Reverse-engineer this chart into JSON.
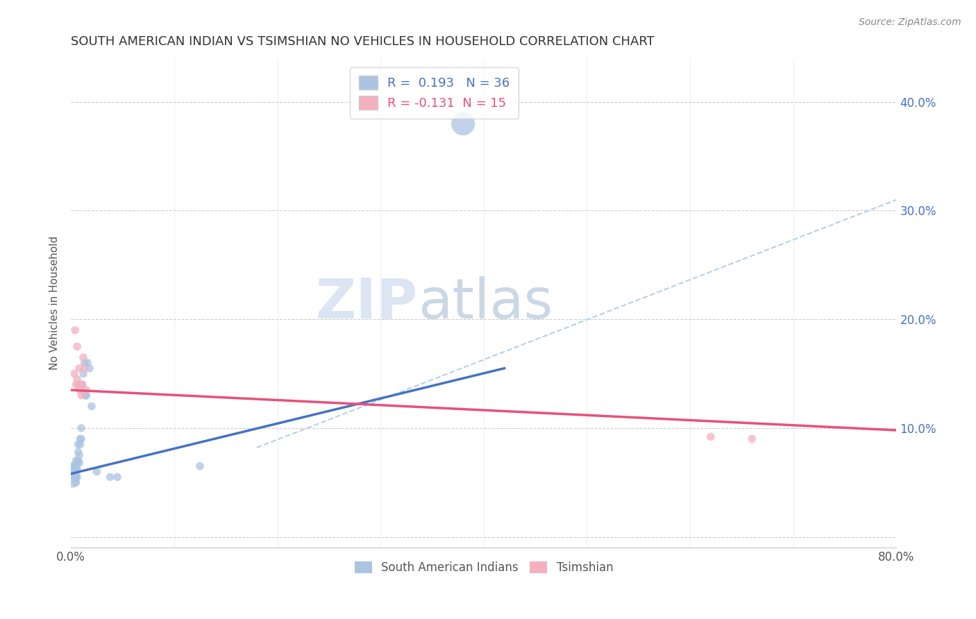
{
  "title": "SOUTH AMERICAN INDIAN VS TSIMSHIAN NO VEHICLES IN HOUSEHOLD CORRELATION CHART",
  "source": "Source: ZipAtlas.com",
  "ylabel": "No Vehicles in Household",
  "xlim": [
    0.0,
    0.8
  ],
  "ylim": [
    -0.01,
    0.44
  ],
  "yticks": [
    0.0,
    0.1,
    0.2,
    0.3,
    0.4
  ],
  "ytick_labels_right": [
    "",
    "10.0%",
    "20.0%",
    "30.0%",
    "40.0%"
  ],
  "xticks": [
    0.0,
    0.1,
    0.2,
    0.3,
    0.4,
    0.5,
    0.6,
    0.7,
    0.8
  ],
  "blue_R": 0.193,
  "blue_N": 36,
  "pink_R": -0.131,
  "pink_N": 15,
  "blue_color": "#aac4e2",
  "pink_color": "#f4b0bf",
  "blue_line_color": "#4472c4",
  "pink_line_color": "#e8507a",
  "dashed_line_color": "#b8cfe8",
  "watermark_zip": "ZIP",
  "watermark_atlas": "atlas",
  "legend_label_blue": "South American Indians",
  "legend_label_pink": "Tsimshian",
  "blue_scatter_x": [
    0.002,
    0.003,
    0.003,
    0.004,
    0.004,
    0.004,
    0.005,
    0.005,
    0.005,
    0.005,
    0.005,
    0.006,
    0.006,
    0.006,
    0.007,
    0.007,
    0.007,
    0.008,
    0.008,
    0.009,
    0.009,
    0.01,
    0.01,
    0.011,
    0.012,
    0.013,
    0.014,
    0.015,
    0.016,
    0.018,
    0.02,
    0.025,
    0.038,
    0.045,
    0.38,
    0.125
  ],
  "blue_scatter_y": [
    0.05,
    0.06,
    0.065,
    0.055,
    0.06,
    0.065,
    0.05,
    0.055,
    0.06,
    0.065,
    0.07,
    0.055,
    0.062,
    0.068,
    0.07,
    0.078,
    0.085,
    0.068,
    0.075,
    0.085,
    0.09,
    0.09,
    0.1,
    0.14,
    0.15,
    0.16,
    0.13,
    0.13,
    0.16,
    0.155,
    0.12,
    0.06,
    0.055,
    0.055,
    0.38,
    0.065
  ],
  "blue_scatter_sizes": [
    120,
    90,
    90,
    80,
    80,
    80,
    70,
    70,
    70,
    70,
    70,
    70,
    70,
    70,
    70,
    70,
    70,
    70,
    70,
    70,
    70,
    70,
    70,
    70,
    70,
    70,
    70,
    70,
    70,
    70,
    70,
    70,
    70,
    70,
    600,
    70
  ],
  "pink_scatter_x": [
    0.003,
    0.004,
    0.005,
    0.006,
    0.006,
    0.007,
    0.008,
    0.009,
    0.01,
    0.011,
    0.012,
    0.013,
    0.015,
    0.62,
    0.66
  ],
  "pink_scatter_y": [
    0.15,
    0.19,
    0.14,
    0.145,
    0.175,
    0.14,
    0.155,
    0.135,
    0.13,
    0.14,
    0.165,
    0.155,
    0.135,
    0.092,
    0.09
  ],
  "pink_scatter_sizes": [
    70,
    70,
    70,
    70,
    70,
    70,
    70,
    70,
    70,
    70,
    70,
    70,
    70,
    70,
    70
  ],
  "blue_line_x": [
    0.0,
    0.42
  ],
  "blue_line_y": [
    0.058,
    0.155
  ],
  "pink_line_x": [
    0.0,
    0.8
  ],
  "pink_line_y": [
    0.135,
    0.098
  ],
  "dashed_line_x": [
    0.18,
    0.8
  ],
  "dashed_line_y": [
    0.082,
    0.31
  ],
  "background_color": "#ffffff",
  "grid_color": "#cccccc"
}
